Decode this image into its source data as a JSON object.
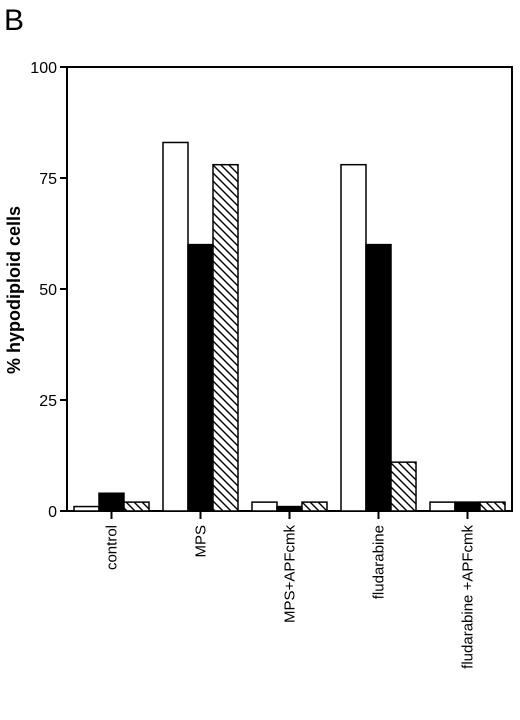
{
  "panel_label": "B",
  "chart_data": {
    "type": "bar",
    "title": "",
    "xlabel": "",
    "ylabel": "% hypodiploid cells",
    "ylim": [
      0,
      100
    ],
    "yticks": [
      0,
      25,
      50,
      75,
      100
    ],
    "grid": false,
    "legend": "none",
    "categories": [
      "control",
      "MPS",
      "MPS+APFcmk",
      "fludarabine",
      "fludarabine +APFcmk"
    ],
    "series": [
      {
        "values": [
          1,
          83,
          2,
          78,
          2
        ],
        "fill": "#ffffff",
        "pattern": "none"
      },
      {
        "values": [
          4,
          60,
          1,
          60,
          2
        ],
        "fill": "#000000",
        "pattern": "none"
      },
      {
        "values": [
          2,
          78,
          2,
          11,
          2
        ],
        "fill": "#ffffff",
        "pattern": "diagonal-hatch"
      }
    ]
  }
}
